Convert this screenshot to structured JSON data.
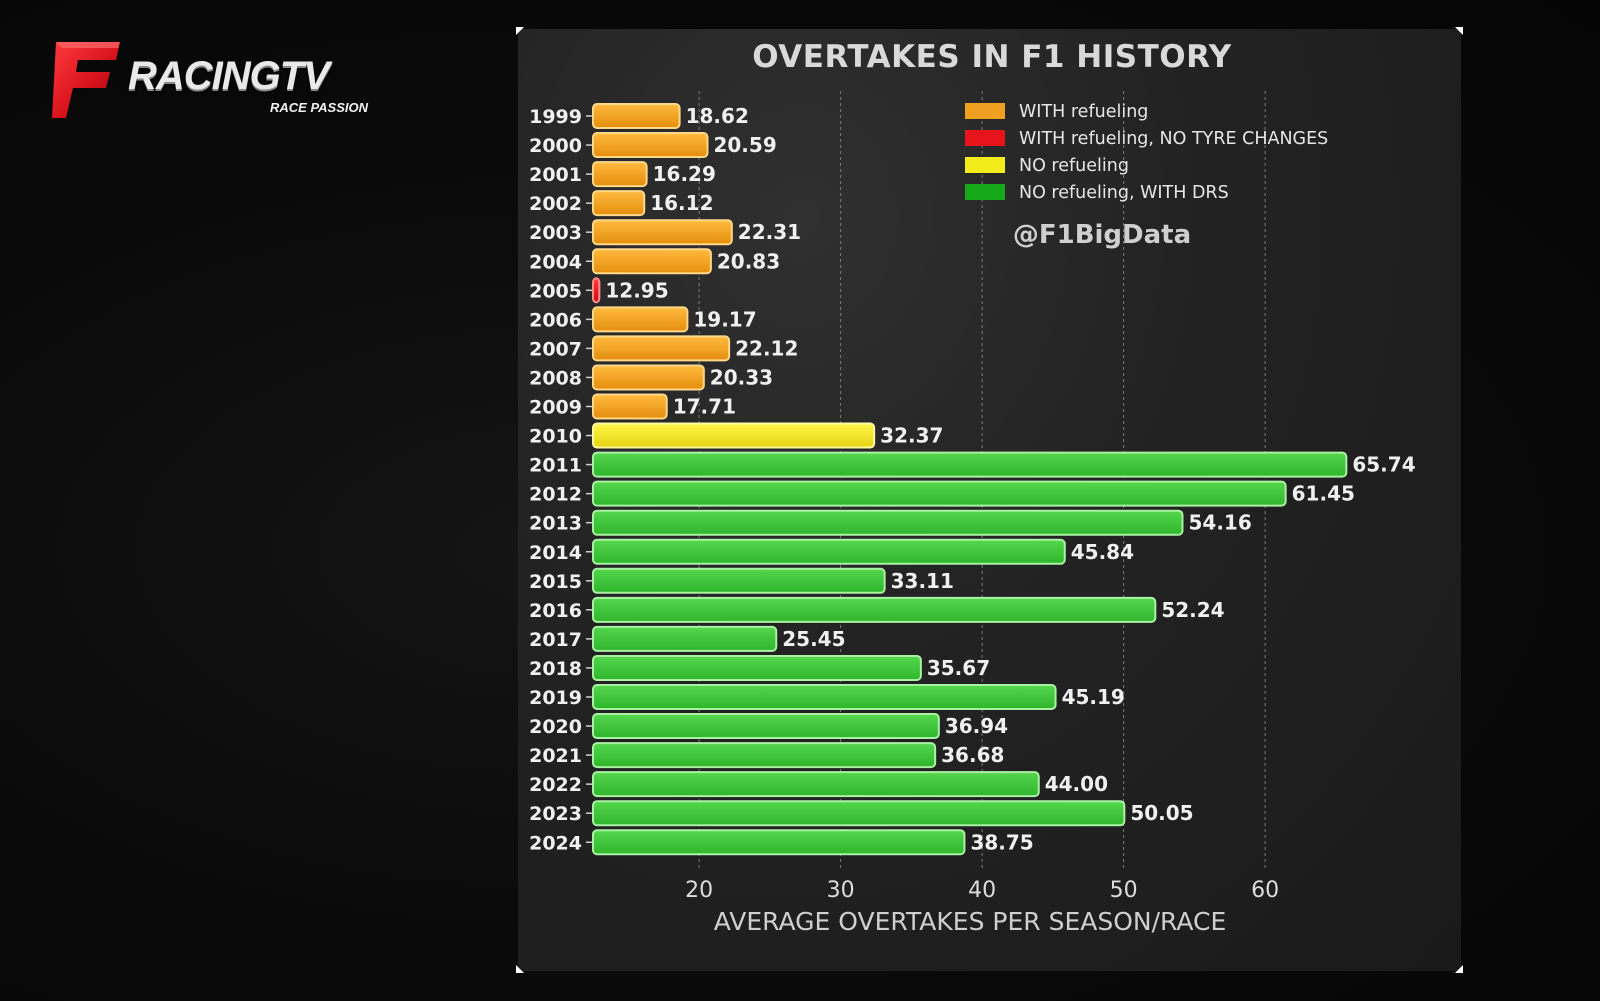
{
  "logo": {
    "mark": "F",
    "brand": "RACINGTV",
    "tagline": "RACE PASSION"
  },
  "handle": "@F1BigData",
  "colors": {
    "background": "#070707",
    "panel": "#232323",
    "brand_red": "#d8121b",
    "with_refueling": "#f0a020",
    "with_refueling_no_tyre": "#e8141c",
    "no_refueling": "#f2ec1c",
    "no_refueling_drs": "#3ec43a"
  },
  "chart_data": {
    "type": "bar",
    "orientation": "horizontal",
    "title": "OVERTAKES IN F1 HISTORY",
    "xlabel": "AVERAGE OVERTAKES PER SEASON/RACE",
    "ylabel": "",
    "xlim": [
      12.5,
      67
    ],
    "xticks": [
      20,
      30,
      40,
      50,
      60
    ],
    "grid": "vertical dashed",
    "legend_position": "top-right",
    "legend": [
      {
        "key": "refuel",
        "label": "WITH refueling",
        "color": "#f0a020"
      },
      {
        "key": "refuel_notyre",
        "label": "WITH refueling, NO TYRE CHANGES",
        "color": "#e8141c"
      },
      {
        "key": "norefuel",
        "label": "NO refueling",
        "color": "#f2ec1c"
      },
      {
        "key": "norefuel_drs",
        "label": "NO refueling, WITH DRS",
        "color": "#17a81a"
      }
    ],
    "bars": [
      {
        "year": "1999",
        "value": 18.62,
        "label": "18.62",
        "group": "refuel"
      },
      {
        "year": "2000",
        "value": 20.59,
        "label": "20.59",
        "group": "refuel"
      },
      {
        "year": "2001",
        "value": 16.29,
        "label": "16.29",
        "group": "refuel"
      },
      {
        "year": "2002",
        "value": 16.12,
        "label": "16.12",
        "group": "refuel"
      },
      {
        "year": "2003",
        "value": 22.31,
        "label": "22.31",
        "group": "refuel"
      },
      {
        "year": "2004",
        "value": 20.83,
        "label": "20.83",
        "group": "refuel"
      },
      {
        "year": "2005",
        "value": 12.95,
        "label": "12.95",
        "group": "refuel_notyre"
      },
      {
        "year": "2006",
        "value": 19.17,
        "label": "19.17",
        "group": "refuel"
      },
      {
        "year": "2007",
        "value": 22.12,
        "label": "22.12",
        "group": "refuel"
      },
      {
        "year": "2008",
        "value": 20.33,
        "label": "20.33",
        "group": "refuel"
      },
      {
        "year": "2009",
        "value": 17.71,
        "label": "17.71",
        "group": "refuel"
      },
      {
        "year": "2010",
        "value": 32.37,
        "label": "32.37",
        "group": "norefuel"
      },
      {
        "year": "2011",
        "value": 65.74,
        "label": "65.74",
        "group": "norefuel_drs"
      },
      {
        "year": "2012",
        "value": 61.45,
        "label": "61.45",
        "group": "norefuel_drs"
      },
      {
        "year": "2013",
        "value": 54.16,
        "label": "54.16",
        "group": "norefuel_drs"
      },
      {
        "year": "2014",
        "value": 45.84,
        "label": "45.84",
        "group": "norefuel_drs"
      },
      {
        "year": "2015",
        "value": 33.11,
        "label": "33.11",
        "group": "norefuel_drs"
      },
      {
        "year": "2016",
        "value": 52.24,
        "label": "52.24",
        "group": "norefuel_drs"
      },
      {
        "year": "2017",
        "value": 25.45,
        "label": "25.45",
        "group": "norefuel_drs"
      },
      {
        "year": "2018",
        "value": 35.67,
        "label": "35.67",
        "group": "norefuel_drs"
      },
      {
        "year": "2019",
        "value": 45.19,
        "label": "45.19",
        "group": "norefuel_drs"
      },
      {
        "year": "2020",
        "value": 36.94,
        "label": "36.94",
        "group": "norefuel_drs"
      },
      {
        "year": "2021",
        "value": 36.68,
        "label": "36.68",
        "group": "norefuel_drs"
      },
      {
        "year": "2022",
        "value": 44.0,
        "label": "44.00",
        "group": "norefuel_drs"
      },
      {
        "year": "2023",
        "value": 50.05,
        "label": "50.05",
        "group": "norefuel_drs"
      },
      {
        "year": "2024",
        "value": 38.75,
        "label": "38.75",
        "group": "norefuel_drs"
      }
    ]
  }
}
